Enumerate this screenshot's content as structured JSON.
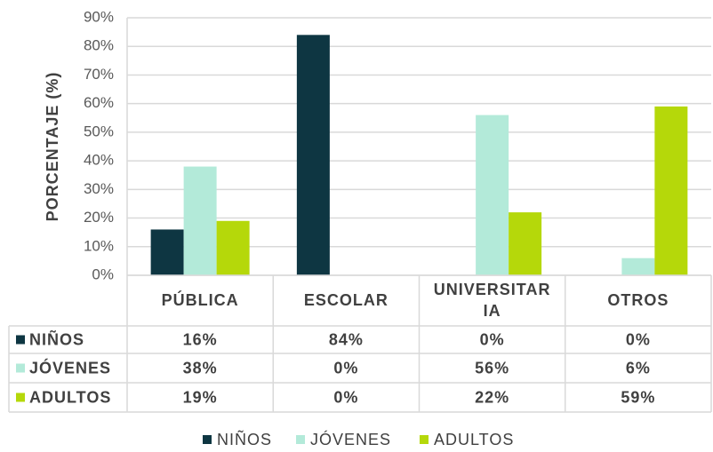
{
  "chart_data": {
    "type": "bar",
    "y_label": "PORCENTAJE (%)",
    "categories": [
      "PÚBLICA",
      "ESCOLAR",
      "UNIVERSITARIA",
      "OTROS"
    ],
    "series": [
      {
        "name": "NIÑOS",
        "color": "#0e3642",
        "values": [
          16,
          84,
          0,
          0
        ],
        "value_labels": [
          "16%",
          "84%",
          "0%",
          "0%"
        ]
      },
      {
        "name": "JÓVENES",
        "color": "#b3ead9",
        "values": [
          38,
          0,
          56,
          6
        ],
        "value_labels": [
          "38%",
          "0%",
          "56%",
          "6%"
        ]
      },
      {
        "name": "ADULTOS",
        "color": "#b5d80a",
        "values": [
          19,
          0,
          22,
          59
        ],
        "value_labels": [
          "19%",
          "0%",
          "22%",
          "59%"
        ]
      }
    ],
    "ylim": [
      0,
      90
    ],
    "yticks": [
      {
        "value": 0,
        "label": "0%"
      },
      {
        "value": 10,
        "label": "10%"
      },
      {
        "value": 20,
        "label": "20%"
      },
      {
        "value": 30,
        "label": "30%"
      },
      {
        "value": 40,
        "label": "40%"
      },
      {
        "value": 50,
        "label": "50%"
      },
      {
        "value": 60,
        "label": "60%"
      },
      {
        "value": 70,
        "label": "70%"
      },
      {
        "value": 80,
        "label": "80%"
      },
      {
        "value": 90,
        "label": "90%"
      }
    ],
    "grid": true
  }
}
